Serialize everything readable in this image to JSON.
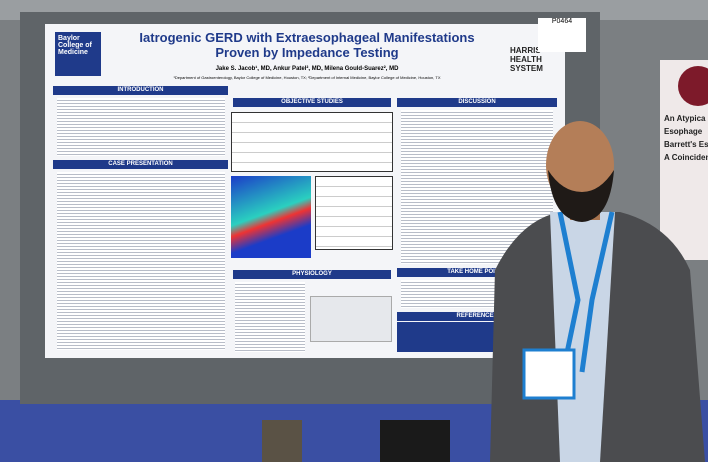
{
  "poster": {
    "code": "P0464",
    "logo": "Baylor College of Medicine",
    "title": "Iatrogenic GERD with Extraesophageal Manifestations Proven by Impedance Testing",
    "authors": "Jake S. Jacob¹, MD, Ankur Patel², MD, Milena Gould-Suarez², MD",
    "affiliations": "¹Department of Gastroenterology, Baylor College of Medicine, Houston, TX; ²Department of Internal Medicine, Baylor College of Medicine, Houston, TX",
    "partner": "HARRIS HEALTH SYSTEM",
    "sections": {
      "introduction": "INTRODUCTION",
      "case": "CASE PRESENTATION",
      "objective": "OBJECTIVE STUDIES",
      "physiology": "PHYSIOLOGY",
      "discussion": "DISCUSSION",
      "takehome": "TAKE HOME POINTS",
      "references": "REFERENCES"
    }
  },
  "neighbor_poster": {
    "lines": [
      "An Atypica",
      "Esophage",
      "Barrett's Es",
      "A Coinciden"
    ]
  }
}
